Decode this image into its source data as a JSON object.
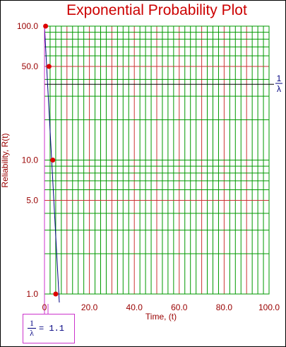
{
  "chart_data": {
    "type": "scatter",
    "title": "Exponential Probability Plot",
    "xlabel": "Time, (t)",
    "ylabel": "Reliability, R(t)",
    "xlim": [
      0,
      100
    ],
    "ylim": [
      1,
      100
    ],
    "yscale": "log",
    "grid": true,
    "x_ticks": [
      "0",
      "20.0",
      "40.0",
      "60.0",
      "80.0",
      "100.0"
    ],
    "y_ticks": [
      "100.0",
      "50.0",
      "10.0",
      "5.0",
      "1.0"
    ],
    "points": [
      {
        "x": 0.5,
        "y": 100
      },
      {
        "x": 2.0,
        "y": 50
      },
      {
        "x": 3.7,
        "y": 10
      },
      {
        "x": 5.0,
        "y": 1
      }
    ],
    "fit_line": {
      "x0": 0,
      "y0": 100,
      "x1": 6.6,
      "y1": 1
    },
    "mean_life_line": {
      "y": 36.8,
      "label_num": "1",
      "label_den": "λ"
    },
    "parameter": {
      "label_num": "1",
      "label_den": "λ",
      "equals": "=",
      "value": "1.1"
    },
    "colors": {
      "title": "#cc0000",
      "axis_text": "#990000",
      "major_grid": "#cc3333",
      "minor_grid": "#009900",
      "points": "#dd0000",
      "fit_line": "#000080",
      "marker": "#cc33cc"
    }
  }
}
